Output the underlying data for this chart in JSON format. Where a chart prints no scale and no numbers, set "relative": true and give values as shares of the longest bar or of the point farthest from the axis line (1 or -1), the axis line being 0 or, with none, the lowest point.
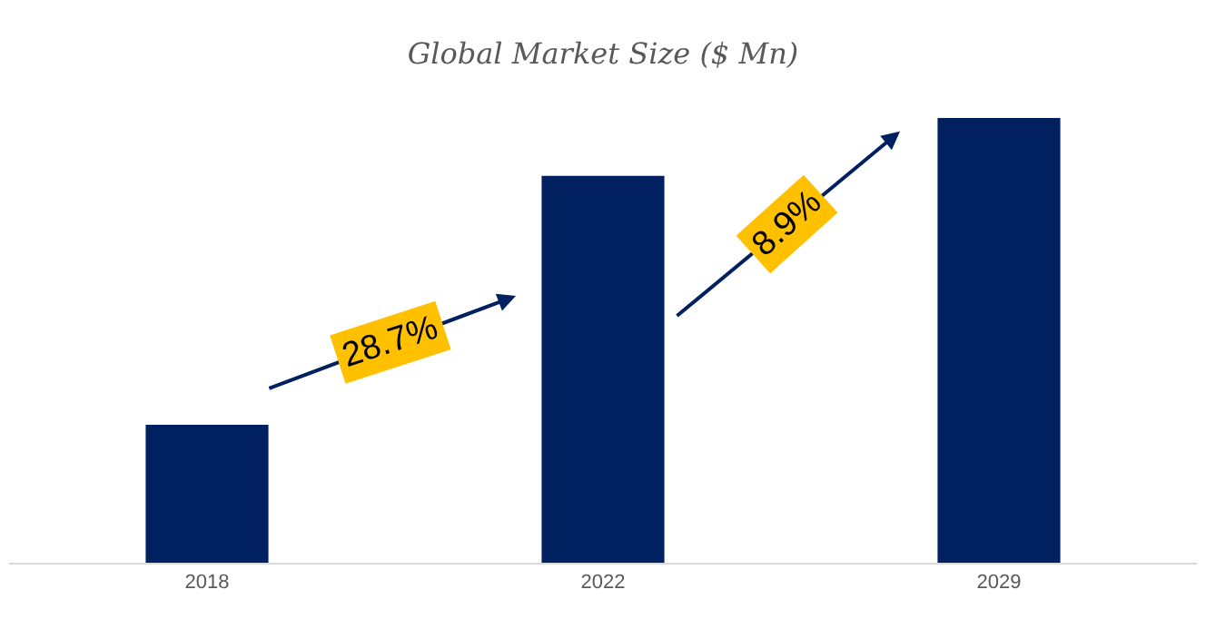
{
  "chart_data": {
    "type": "bar",
    "title": "Global Market Size ($ Mn)",
    "relative": true,
    "categories": [
      "2018",
      "2022",
      "2029"
    ],
    "values": [
      0.31,
      0.87,
      1
    ],
    "color": "#002060",
    "annotations": [
      "28.7%",
      "8.9%"
    ]
  }
}
